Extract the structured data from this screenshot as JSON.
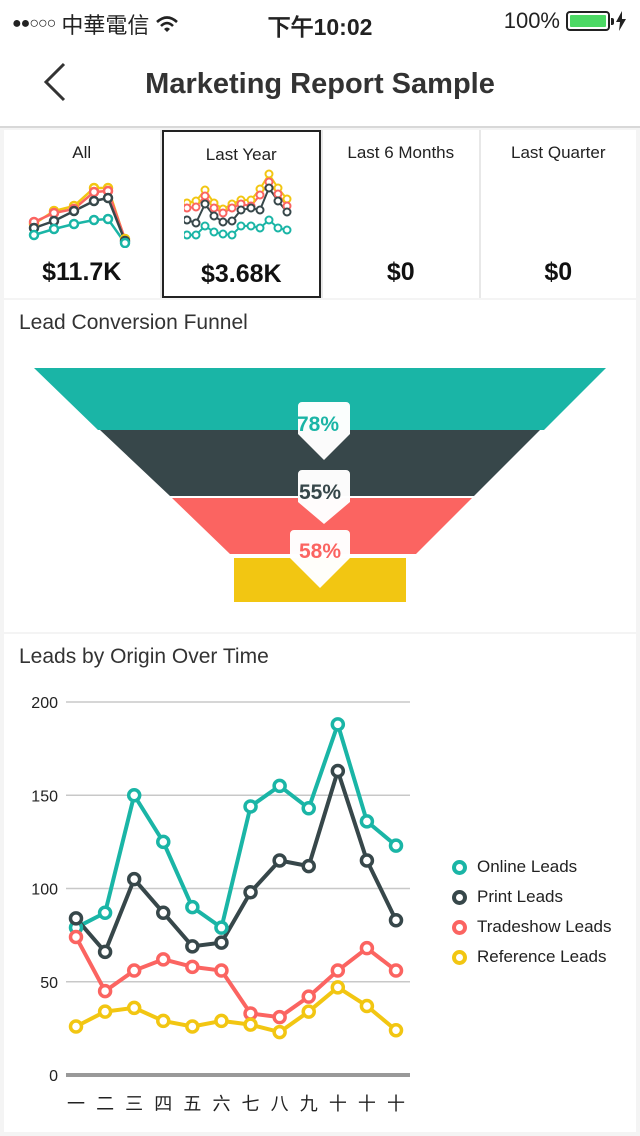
{
  "status_bar": {
    "signal": "●●○○○",
    "carrier": "中華電信",
    "wifi_icon": "wifi-icon",
    "time": "下午10:02",
    "battery_percent": "100%",
    "battery_level": 1.0
  },
  "nav": {
    "title": "Marketing Report Sample",
    "back_icon": "chevron-left-icon"
  },
  "colors": {
    "online": "#1ab5a6",
    "print": "#37474a",
    "tradeshow": "#fb6461",
    "reference": "#f2c612"
  },
  "tiles": [
    {
      "label": "All",
      "value": "$11.7K",
      "selected": false
    },
    {
      "label": "Last Year",
      "value": "$3.68K",
      "selected": true
    },
    {
      "label": "Last 6 Months",
      "value": "$0",
      "selected": false
    },
    {
      "label": "Last Quarter",
      "value": "$0",
      "selected": false
    }
  ],
  "funnel": {
    "title": "Lead Conversion Funnel",
    "labels": [
      "78%",
      "55%",
      "58%"
    ]
  },
  "chart_data": [
    {
      "type": "line",
      "title": "Leads by Origin Over Time",
      "categories": [
        "一",
        "二",
        "三",
        "四",
        "五",
        "六",
        "七",
        "八",
        "九",
        "十",
        "十",
        "十"
      ],
      "ylim": [
        0,
        200
      ],
      "yticks": [
        0,
        50,
        100,
        150,
        200
      ],
      "grid": true,
      "legend": "right",
      "series": [
        {
          "name": "Online Leads",
          "color": "#1ab5a6",
          "values": [
            79,
            87,
            150,
            125,
            90,
            79,
            144,
            155,
            143,
            188,
            136,
            123
          ]
        },
        {
          "name": "Print Leads",
          "color": "#37474a",
          "values": [
            84,
            66,
            105,
            87,
            69,
            71,
            98,
            115,
            112,
            163,
            115,
            83
          ]
        },
        {
          "name": "Tradeshow Leads",
          "color": "#fb6461",
          "values": [
            74,
            45,
            56,
            62,
            58,
            56,
            33,
            31,
            42,
            56,
            68,
            56
          ]
        },
        {
          "name": "Reference Leads",
          "color": "#f2c612",
          "values": [
            26,
            34,
            36,
            29,
            26,
            29,
            27,
            23,
            34,
            47,
            37,
            24
          ]
        }
      ]
    }
  ]
}
